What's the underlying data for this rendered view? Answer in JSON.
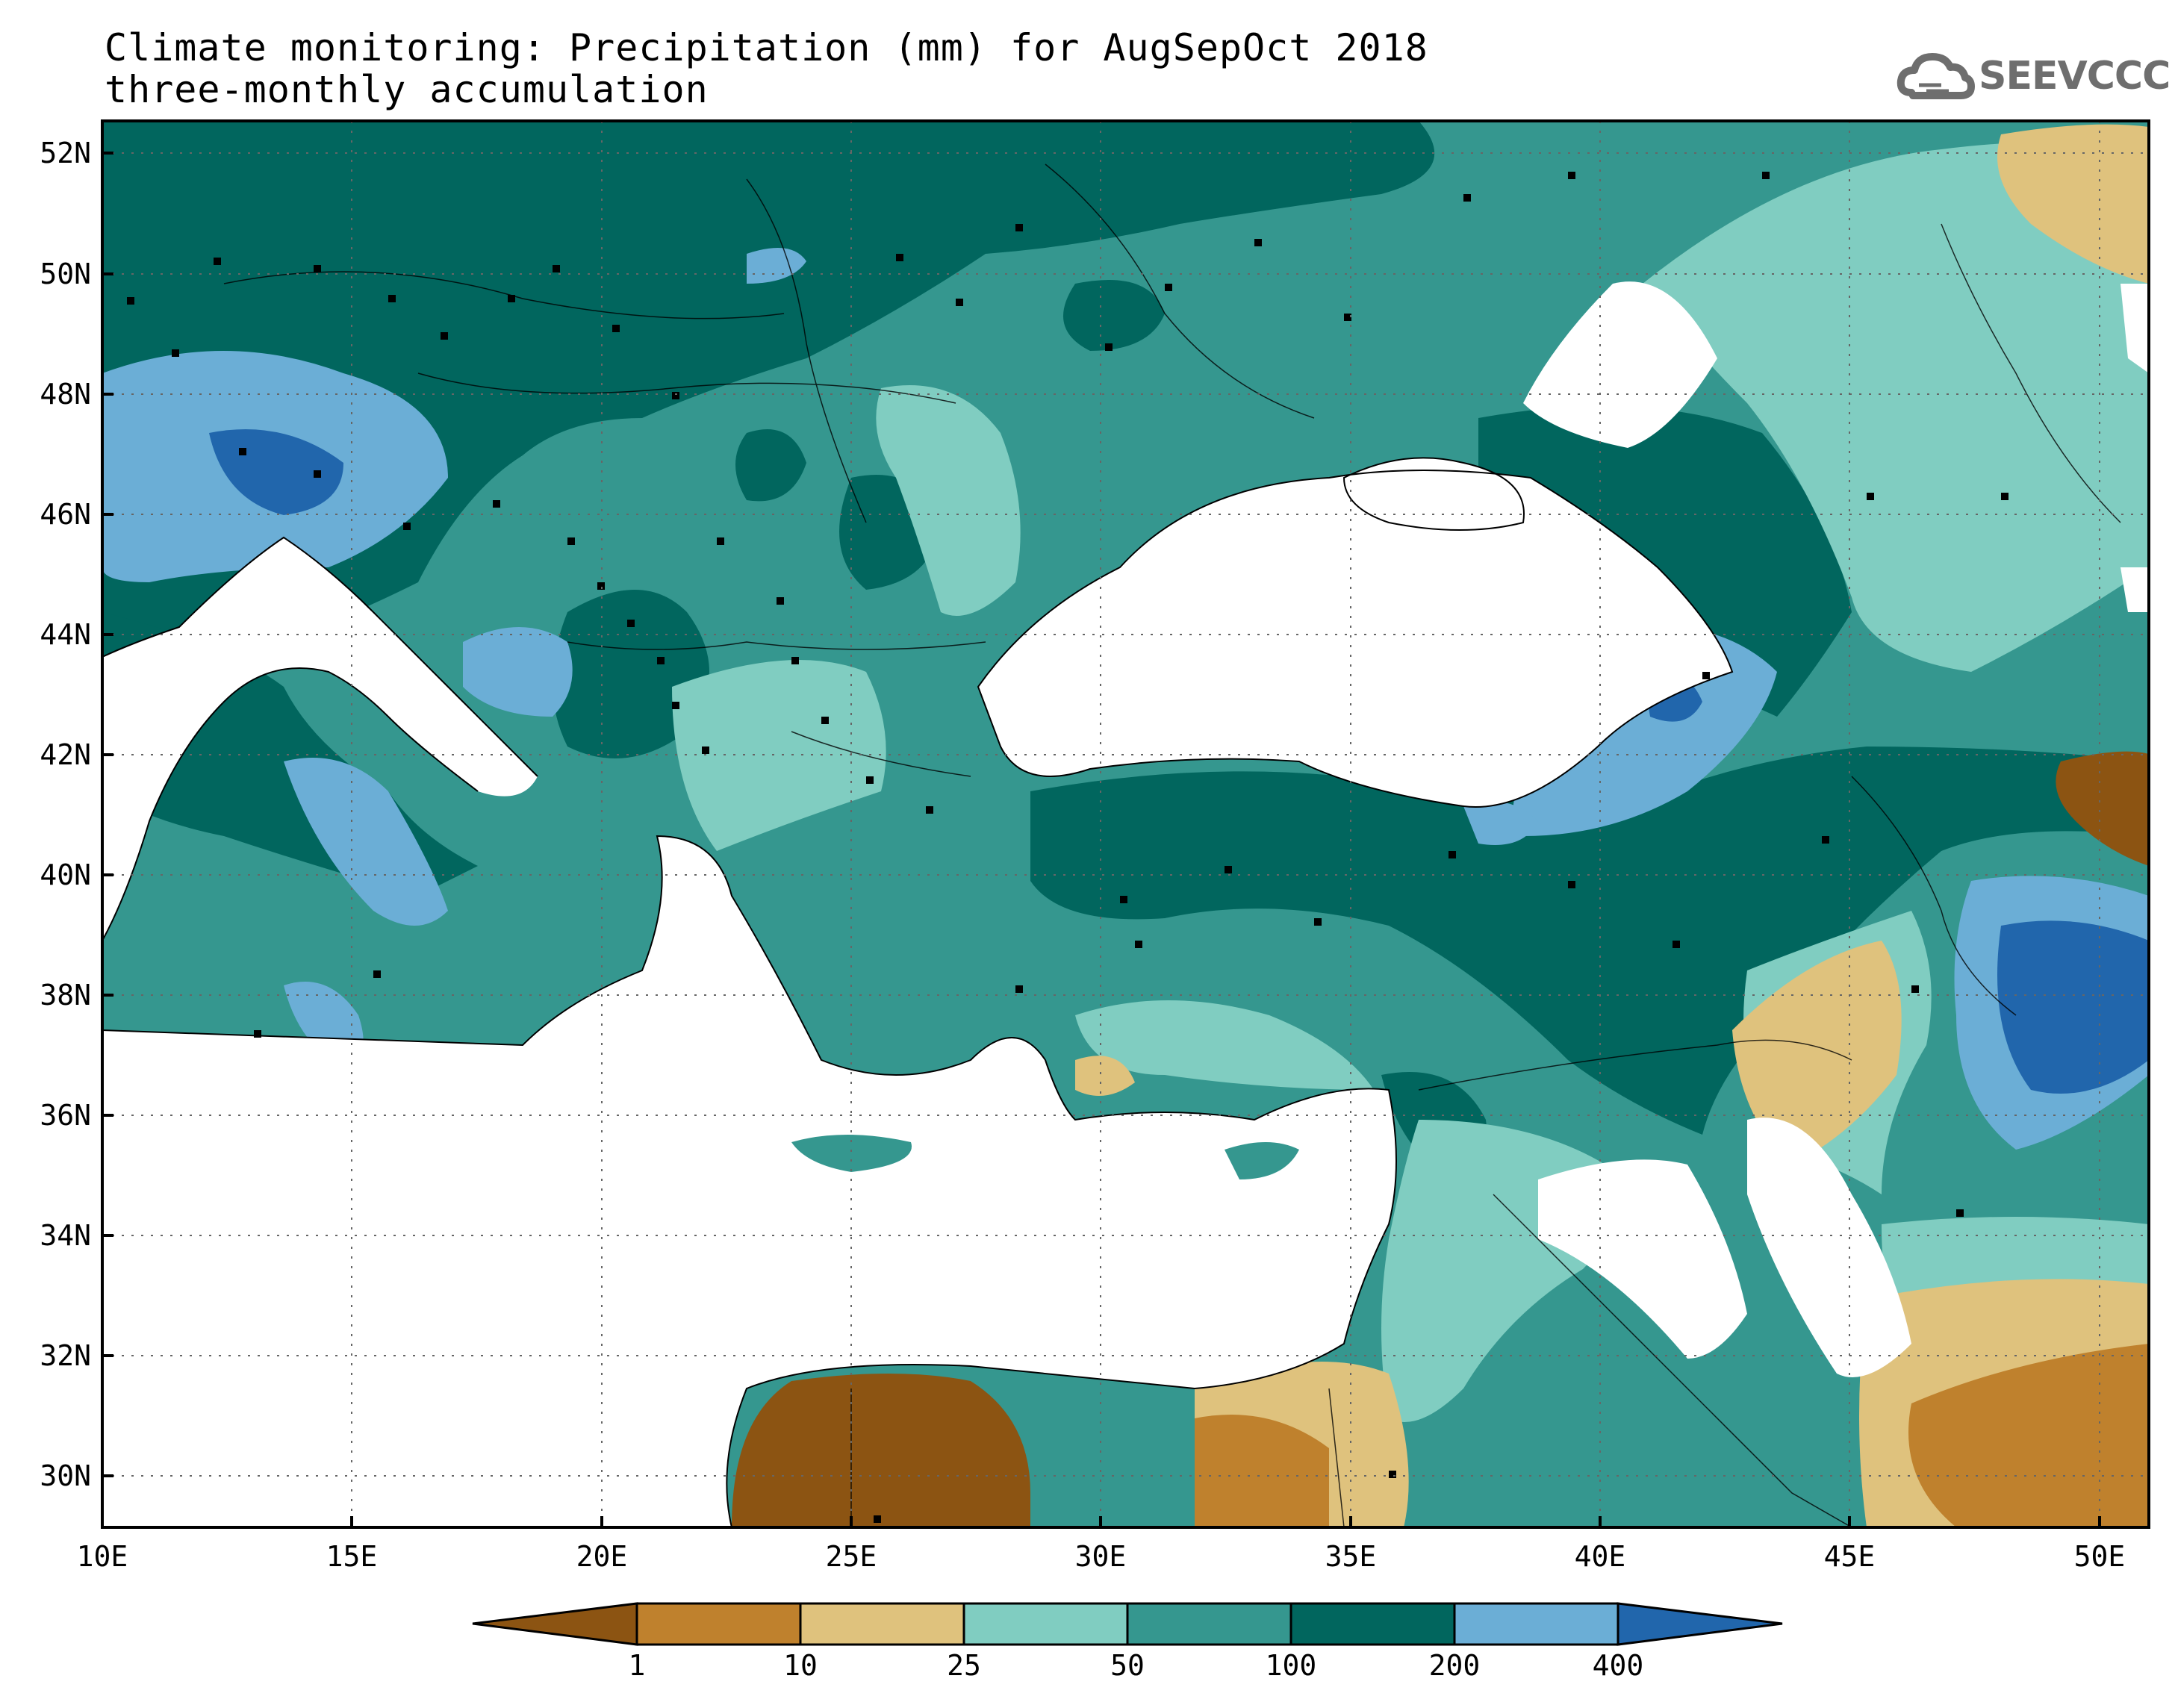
{
  "title": {
    "line1": "Climate monitoring: Precipitation (mm) for AugSepOct 2018",
    "line2": "three-monthly accumulation"
  },
  "logo": {
    "text": "SEEVCCC",
    "icon": "cloud-icon"
  },
  "map": {
    "lat_labels": [
      "52N",
      "50N",
      "48N",
      "46N",
      "44N",
      "42N",
      "40N",
      "38N",
      "36N",
      "34N",
      "32N",
      "30N"
    ],
    "lon_labels": [
      "10E",
      "15E",
      "20E",
      "25E",
      "30E",
      "35E",
      "40E",
      "45E",
      "50E"
    ],
    "lat_range": [
      29,
      52.5
    ],
    "lon_range": [
      10,
      51
    ]
  },
  "legend": {
    "thresholds": [
      "1",
      "10",
      "25",
      "50",
      "100",
      "200",
      "400"
    ],
    "colors": [
      "#8c5412",
      "#bf812d",
      "#dfc27d",
      "#80cdc1",
      "#35978f",
      "#01665e",
      "#6baed6",
      "#2166ac"
    ]
  },
  "chart_data": {
    "type": "heatmap",
    "variable": "Precipitation (mm)",
    "period": "AugSepOct 2018",
    "accumulation": "three-monthly",
    "bins": [
      "<1",
      "1-10",
      "10-25",
      "25-50",
      "50-100",
      "100-200",
      "200-400",
      ">400"
    ]
  }
}
